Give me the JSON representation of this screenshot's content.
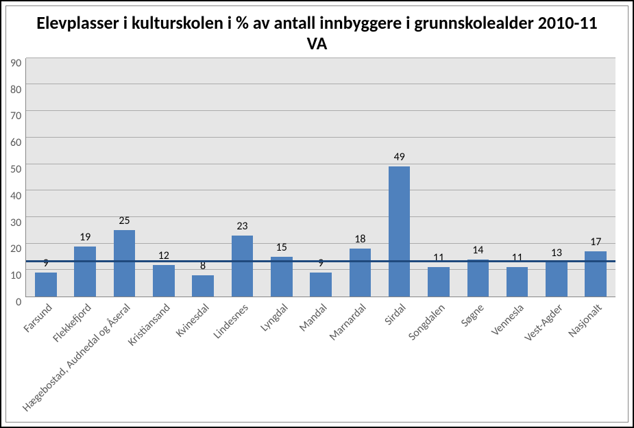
{
  "chart": {
    "type": "bar",
    "title": "Elevplasser i kulturskolen i % av antall innbyggere i grunnskolealder 2010-11 VA",
    "title_fontsize": 26,
    "background_color": "#ffffff",
    "plot_background_color": "#e6e6e6",
    "grid_color": "#ababab",
    "axis_line_color": "#868686",
    "tick_label_color": "#595959",
    "tick_fontsize": 16,
    "data_label_fontsize": 16,
    "x_label_fontsize": 16,
    "x_label_rotation_deg": -45,
    "bar_color": "#4f81bd",
    "bar_width_ratio": 0.55,
    "ylim": [
      0,
      90
    ],
    "ytick_step": 10,
    "yticks": [
      0,
      10,
      20,
      30,
      40,
      50,
      60,
      70,
      80,
      90
    ],
    "reference_line": {
      "value": 13,
      "color": "#1f497d",
      "width": 3
    },
    "categories": [
      "Farsund",
      "Flekkefjord",
      "Hægebostad, Audnedal og Åseral",
      "Kristiansand",
      "Kvinesdal",
      "Lindesnes",
      "Lyngdal",
      "Mandal",
      "Marnardal",
      "Sirdal",
      "Songdalen",
      "Søgne",
      "Vennesla",
      "Vest-Agder",
      "Nasjonalt"
    ],
    "values": [
      9,
      19,
      25,
      12,
      8,
      23,
      15,
      9,
      18,
      49,
      11,
      14,
      11,
      13,
      17
    ]
  }
}
